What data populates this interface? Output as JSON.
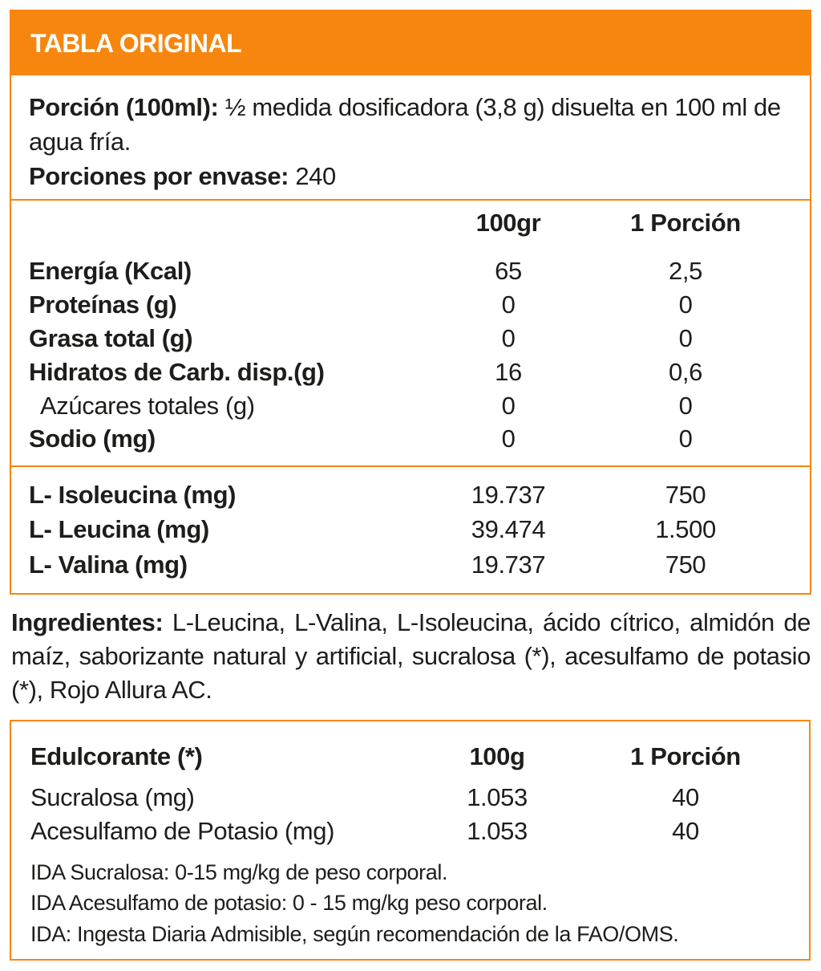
{
  "title": "TABLA ORIGINAL",
  "portion": {
    "label": "Porción (100ml):",
    "value": "½ medida dosificadora (3,8 g) disuelta en 100 ml de agua fría.",
    "servings_label": "Porciones por envase:",
    "servings_value": "240"
  },
  "nutrition": {
    "columns": [
      "100gr",
      "1 Porción"
    ],
    "rows": [
      {
        "name": "Energía (Kcal)",
        "v100": "65",
        "vp": "2,5"
      },
      {
        "name": "Proteínas (g)",
        "v100": "0",
        "vp": "0"
      },
      {
        "name": "Grasa total (g)",
        "v100": "0",
        "vp": "0"
      },
      {
        "name": "Hidratos de Carb. disp.(g)",
        "v100": "16",
        "vp": "0,6"
      },
      {
        "name": "Azúcares totales (g)",
        "v100": "0",
        "vp": "0"
      },
      {
        "name": "Sodio (mg)",
        "v100": "0",
        "vp": "0"
      }
    ],
    "amino": [
      {
        "name": "L- Isoleucina (mg)",
        "v100": "19.737",
        "vp": "750"
      },
      {
        "name": "L- Leucina (mg)",
        "v100": "39.474",
        "vp": "1.500"
      },
      {
        "name": "L- Valina (mg)",
        "v100": "19.737",
        "vp": "750"
      }
    ]
  },
  "ingredients": {
    "label": "Ingredientes:",
    "text": "L-Leucina, L-Valina, L-Isoleucina, ácido cítrico, almidón de maíz, saborizante natural y artificial, sucralosa (*), acesulfamo de potasio (*), Rojo Allura AC."
  },
  "sweeteners": {
    "header": "Edulcorante (*)",
    "columns": [
      "100g",
      "1 Porción"
    ],
    "rows": [
      {
        "name": "Sucralosa (mg)",
        "v100": "1.053",
        "vp": "40"
      },
      {
        "name": "Acesulfamo de Potasio (mg)",
        "v100": "1.053",
        "vp": "40"
      }
    ],
    "notes": [
      "IDA Sucralosa: 0-15 mg/kg de peso corporal.",
      "IDA Acesulfamo de potasio: 0 - 15 mg/kg peso corporal.",
      "IDA: Ingesta Diaria Admisible, según recomendación de la FAO/OMS."
    ]
  },
  "colors": {
    "accent": "#f7860f"
  }
}
